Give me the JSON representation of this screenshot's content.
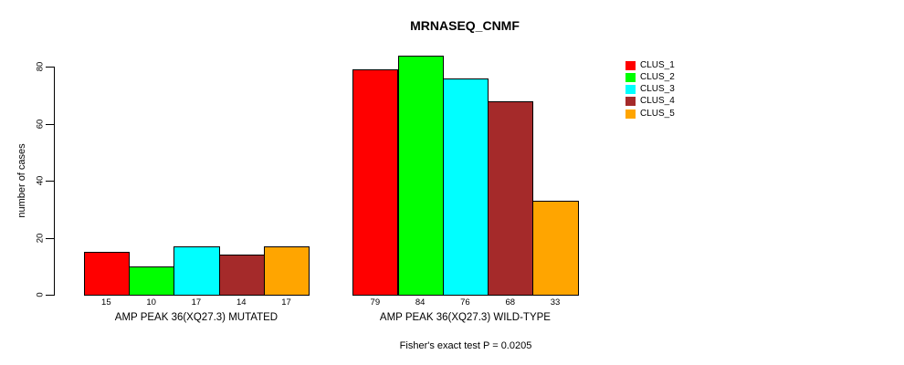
{
  "chart_data": {
    "type": "bar",
    "title": "MRNASEQ_CNMF",
    "ylabel": "number of cases",
    "xlabel": "",
    "ylim": [
      0,
      80
    ],
    "yticks": [
      0,
      20,
      40,
      60,
      80
    ],
    "grid": false,
    "legend_position": "right",
    "bar_value_labels": true,
    "categories": [
      "AMP PEAK 36(XQ27.3) MUTATED",
      "AMP PEAK 36(XQ27.3) WILD-TYPE"
    ],
    "series": [
      {
        "name": "CLUS_1",
        "color": "#ff0000",
        "values": [
          15,
          79
        ]
      },
      {
        "name": "CLUS_2",
        "color": "#00ff00",
        "values": [
          10,
          84
        ]
      },
      {
        "name": "CLUS_3",
        "color": "#00ffff",
        "values": [
          17,
          76
        ]
      },
      {
        "name": "CLUS_4",
        "color": "#a52a2a",
        "values": [
          14,
          68
        ]
      },
      {
        "name": "CLUS_5",
        "color": "#ffa500",
        "values": [
          17,
          33
        ]
      }
    ],
    "annotation": "Fisher's exact test P = 0.0205"
  },
  "legend": {
    "items": [
      {
        "label": "CLUS_1",
        "color": "#ff0000"
      },
      {
        "label": "CLUS_2",
        "color": "#00ff00"
      },
      {
        "label": "CLUS_3",
        "color": "#00ffff"
      },
      {
        "label": "CLUS_4",
        "color": "#a52a2a"
      },
      {
        "label": "CLUS_5",
        "color": "#ffa500"
      }
    ]
  }
}
